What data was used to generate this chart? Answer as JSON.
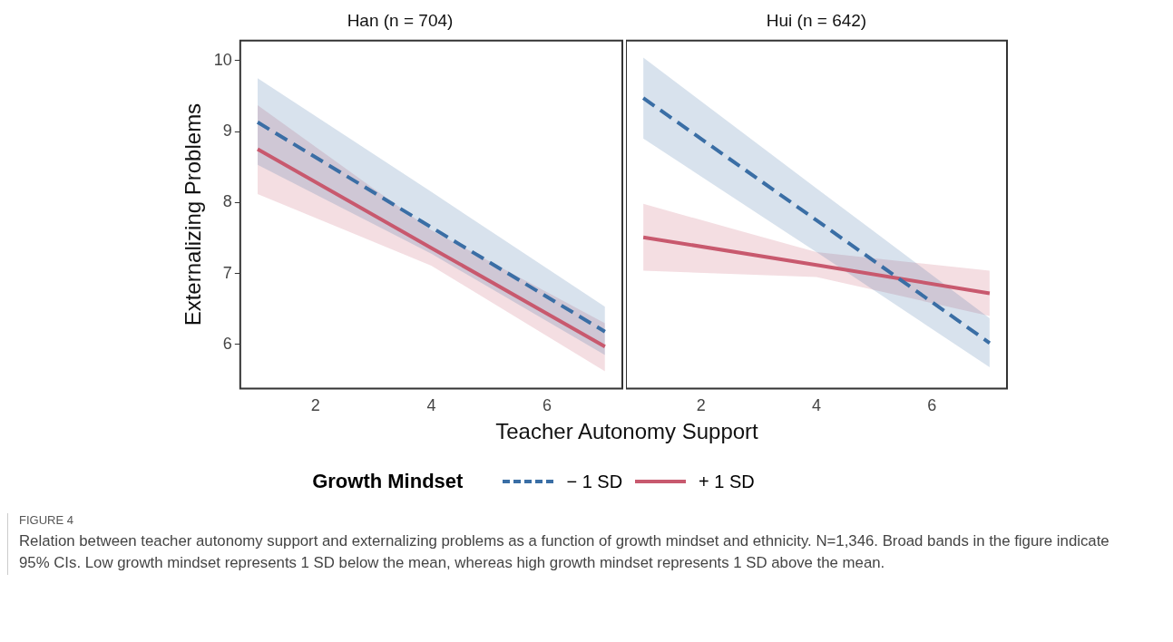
{
  "chart_data": [
    {
      "type": "line",
      "title": "Han (n = 704)",
      "xlabel": "Teacher Autonomy Support",
      "ylabel": "Externalizing Problems",
      "legend_title": "Growth Mindset",
      "legend": "bottom",
      "grid": false,
      "marker": "none",
      "xlim": [
        0.7,
        7.3
      ],
      "xticks": [
        2,
        4,
        6
      ],
      "ylim": [
        5.38,
        10.28
      ],
      "yticks": [
        6,
        7,
        8,
        9,
        10
      ],
      "x": [
        1,
        4,
        7
      ],
      "series": [
        {
          "name": "− 1 SD",
          "color": "#3a6ea5",
          "line_style": "dashed",
          "values": [
            9.13,
            7.65,
            6.18
          ],
          "lower": [
            8.53,
            7.28,
            5.85
          ],
          "upper": [
            9.75,
            8.15,
            6.53
          ]
        },
        {
          "name": "+ 1 SD",
          "color": "#c8596e",
          "line_style": "solid",
          "values": [
            8.75,
            7.36,
            5.97
          ],
          "lower": [
            8.12,
            7.11,
            5.62
          ],
          "upper": [
            9.37,
            7.61,
            6.3
          ]
        }
      ],
      "annotations": [
        "FIGURE 4",
        "Relation between teacher autonomy support and externalizing problems as a function of growth mindset and ethnicity. N=1,346. Broad bands in the figure indicate 95% CIs. Low growth mindset represents 1 SD below the mean, whereas high growth mindset represents 1 SD above the mean."
      ]
    },
    {
      "type": "line",
      "title": "Hui (n = 642)",
      "grid": false,
      "marker": "none",
      "tick_labels": "x",
      "xlim": [
        0.7,
        7.3
      ],
      "xticks": [
        2,
        4,
        6
      ],
      "ylim": [
        5.38,
        10.28
      ],
      "yticks": [
        6,
        7,
        8,
        9,
        10
      ],
      "x": [
        1,
        4,
        7
      ],
      "series": [
        {
          "color": "#3a6ea5",
          "line_style": "dashed",
          "values": [
            9.47,
            7.75,
            6.02
          ],
          "lower": [
            8.9,
            7.3,
            5.68
          ],
          "upper": [
            10.04,
            8.2,
            6.37
          ]
        },
        {
          "color": "#c8596e",
          "line_style": "solid",
          "values": [
            7.51,
            7.12,
            6.72
          ],
          "lower": [
            7.04,
            6.95,
            6.4
          ],
          "upper": [
            7.98,
            7.3,
            7.04
          ]
        }
      ]
    }
  ]
}
